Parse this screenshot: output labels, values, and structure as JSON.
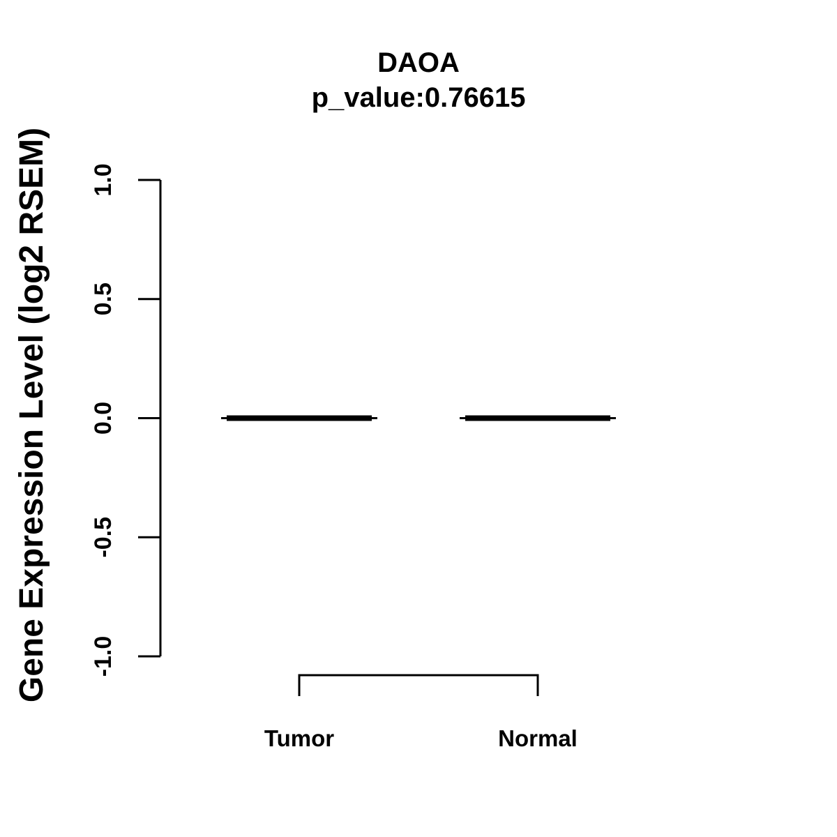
{
  "chart_data": {
    "type": "boxplot",
    "title": "DAOA",
    "subtitle": "p_value:0.76615",
    "p_value": 0.76615,
    "xlabel": "",
    "ylabel": "Gene Expression Level (log2 RSEM)",
    "ylim": [
      -1.0,
      1.0
    ],
    "yticks": [
      {
        "value": 1.0,
        "label": "1.0"
      },
      {
        "value": 0.5,
        "label": "0.5"
      },
      {
        "value": 0.0,
        "label": "0.0"
      },
      {
        "value": -0.5,
        "label": "-0.5"
      },
      {
        "value": -1.0,
        "label": "-1.0"
      }
    ],
    "categories": [
      "Tumor",
      "Normal"
    ],
    "series": [
      {
        "name": "Tumor",
        "median": 0.0,
        "q1": 0.0,
        "q3": 0.0,
        "whisker_low": 0.0,
        "whisker_high": 0.0
      },
      {
        "name": "Normal",
        "median": 0.0,
        "q1": 0.0,
        "q3": 0.0,
        "whisker_low": 0.0,
        "whisker_high": 0.0
      }
    ],
    "annotations": [
      {
        "kind": "comparison-bracket",
        "from": "Tumor",
        "to": "Normal"
      }
    ],
    "grid": false,
    "legend": "none",
    "colors": {
      "foreground": "#000000",
      "background": "#ffffff"
    }
  }
}
